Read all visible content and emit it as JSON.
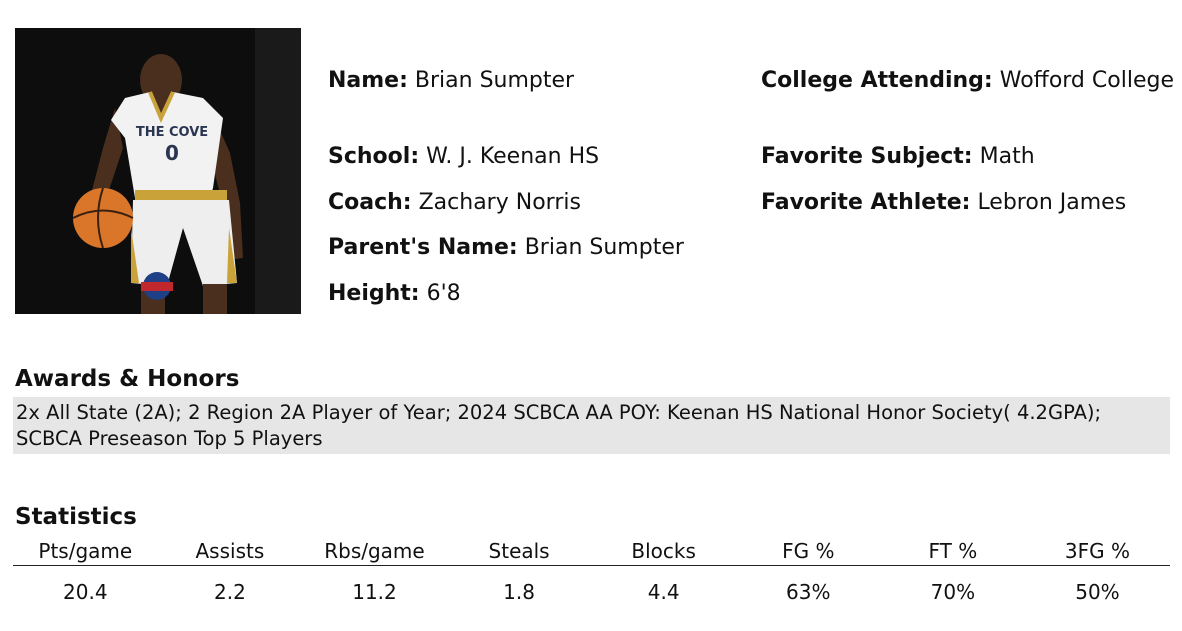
{
  "profile": {
    "photo_icon": "player-photo",
    "jersey_text": "THE COVE",
    "jersey_number": "0",
    "fields": {
      "name": {
        "label": "Name:",
        "value": "Brian Sumpter"
      },
      "school": {
        "label": "School:",
        "value": "W. J. Keenan HS"
      },
      "coach": {
        "label": "Coach:",
        "value": "Zachary Norris"
      },
      "parent": {
        "label": "Parent's Name:",
        "value": "Brian Sumpter"
      },
      "height": {
        "label": "Height:",
        "value": "6'8"
      },
      "college": {
        "label": "College Attending:",
        "value": "Wofford College"
      },
      "subject": {
        "label": "Favorite Subject:",
        "value": "Math"
      },
      "athlete": {
        "label": "Favorite Athlete:",
        "value": "Lebron James"
      }
    }
  },
  "awards": {
    "title": "Awards & Honors",
    "text": "2x All State (2A); 2 Region 2A Player of Year; 2024 SCBCA AA POY: Keenan HS National Honor Society( 4.2GPA); SCBCA Preseason Top 5 Players"
  },
  "statistics": {
    "title": "Statistics",
    "headers": [
      "Pts/game",
      "Assists",
      "Rbs/game",
      "Steals",
      "Blocks",
      "FG %",
      "FT %",
      "3FG %"
    ],
    "values": [
      "20.4",
      "2.2",
      "11.2",
      "1.8",
      "4.4",
      "63%",
      "70%",
      "50%"
    ]
  }
}
